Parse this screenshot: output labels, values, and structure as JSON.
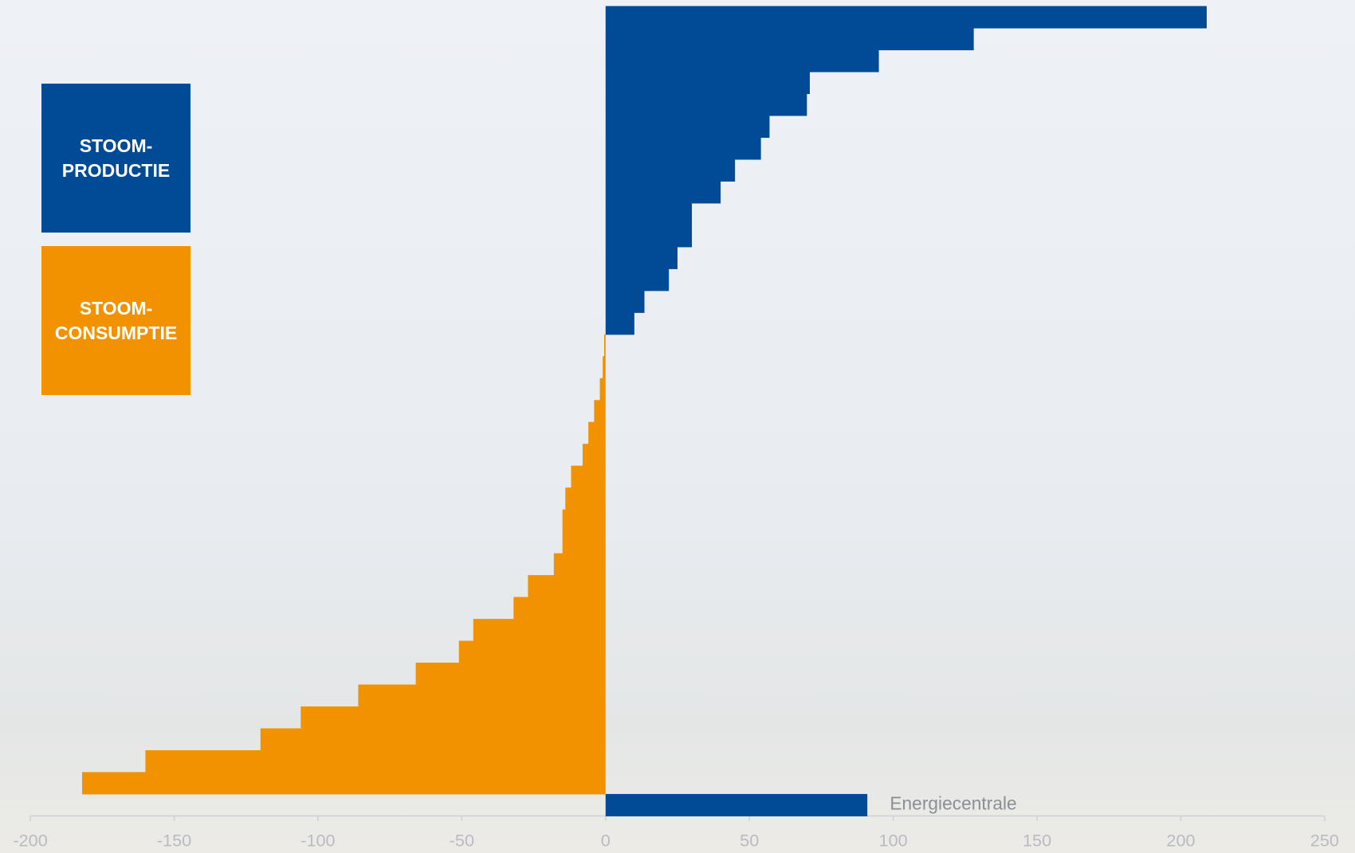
{
  "chart_data": {
    "type": "hbar",
    "categories": [
      null,
      null,
      null,
      null,
      null,
      null,
      null,
      null,
      null,
      null,
      null,
      null,
      null,
      null,
      null,
      null,
      null,
      null,
      null,
      null,
      null,
      null,
      null,
      null,
      null,
      null,
      null,
      null,
      null,
      null,
      null,
      null,
      null,
      null,
      null,
      null,
      "Energiecentrale"
    ],
    "series": [
      {
        "name": "STOOM-\nPRODUCTIE",
        "color": "#004a96",
        "values": [
          209,
          128,
          95,
          71,
          70,
          57,
          54,
          45,
          40,
          30,
          30,
          25,
          22,
          13.5,
          10,
          null,
          null,
          null,
          null,
          null,
          null,
          null,
          null,
          null,
          null,
          null,
          null,
          null,
          null,
          null,
          null,
          null,
          null,
          null,
          null,
          null,
          91
        ]
      },
      {
        "name": "STOOM-\nCONSUMPTIE",
        "color": "#f39200",
        "values": [
          null,
          null,
          null,
          null,
          null,
          null,
          null,
          null,
          null,
          null,
          null,
          null,
          null,
          null,
          null,
          -0.5,
          -1,
          -2,
          -4,
          -6,
          -8,
          -12,
          -14,
          -15,
          -15,
          -18,
          -27,
          -32,
          -46,
          -51,
          -66,
          -86,
          -106,
          -120,
          -160,
          -182,
          null
        ]
      }
    ],
    "xlim": [
      -200,
      250
    ],
    "xticks": [
      -200,
      -150,
      -100,
      -50,
      0,
      50,
      100,
      150,
      200,
      250
    ]
  }
}
